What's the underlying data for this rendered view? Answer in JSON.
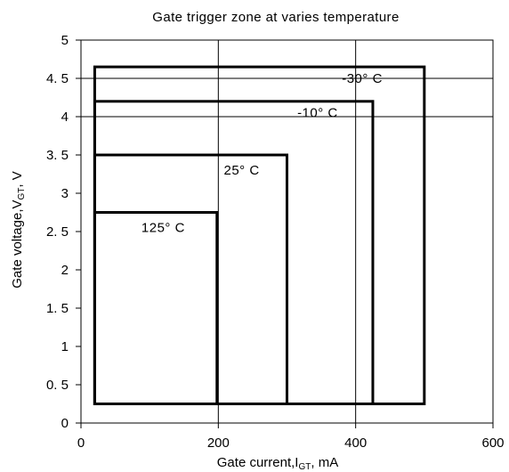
{
  "chart_data": {
    "type": "line",
    "title": "Gate trigger zone at varies temperature",
    "xlabel_main": "Gate current,I",
    "xlabel_sub": "GT",
    "xlabel_unit": ", mA",
    "ylabel_main": "Gate voltage,V",
    "ylabel_sub": "GT",
    "ylabel_unit": ", V",
    "xlim": [
      0,
      600
    ],
    "ylim": [
      0,
      5
    ],
    "x_ticks": [
      0,
      200,
      400,
      600
    ],
    "x_tick_labels": [
      "0",
      "200",
      "400",
      "600"
    ],
    "y_ticks": [
      0,
      0.5,
      1,
      1.5,
      2,
      2.5,
      3,
      3.5,
      4,
      4.5,
      5
    ],
    "y_tick_labels": [
      "0",
      "0. 5",
      "1",
      "1. 5",
      "2",
      "2. 5",
      "3",
      "3. 5",
      "4",
      "4. 5",
      "5"
    ],
    "x_gridlines": [
      200,
      400
    ],
    "y_gridlines": [
      4,
      4.5
    ],
    "zones": [
      {
        "label": "-30° C",
        "x_min": 20,
        "x_max": 500,
        "y_min": 0.25,
        "y_max": 4.65,
        "label_x": 380,
        "label_y": 4.5
      },
      {
        "label": "-10° C",
        "x_min": 20,
        "x_max": 425,
        "y_min": 0.25,
        "y_max": 4.2,
        "label_x": 315,
        "label_y": 4.05
      },
      {
        "label": "25° C",
        "x_min": 20,
        "x_max": 300,
        "y_min": 0.25,
        "y_max": 3.5,
        "label_x": 208,
        "label_y": 3.3
      },
      {
        "label": "125° C",
        "x_min": 20,
        "x_max": 198,
        "y_min": 0.25,
        "y_max": 2.75,
        "label_x": 88,
        "label_y": 2.55
      }
    ]
  }
}
